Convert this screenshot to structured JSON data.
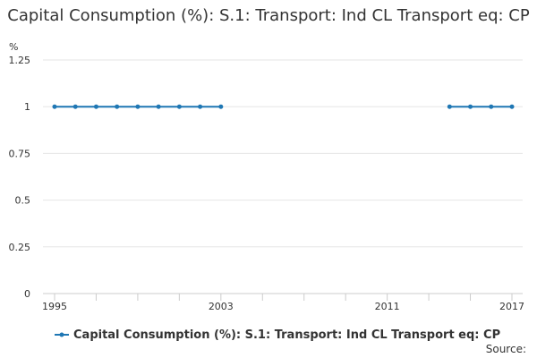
{
  "chart_data": {
    "type": "line",
    "title": "Capital Consumption (%): S.1: Transport: Ind CL Transport eq: CP",
    "ylabel": "%",
    "xlabel": "",
    "ylim": [
      0,
      1.25
    ],
    "xlim": [
      1995,
      2017
    ],
    "y_ticks": [
      0,
      0.25,
      0.5,
      0.75,
      1,
      1.25
    ],
    "y_tick_labels": [
      "0",
      "0.25",
      "0.5",
      "0.75",
      "1",
      "1.25"
    ],
    "x_tick_labels": [
      "1995",
      "2003",
      "2011",
      "2017"
    ],
    "x_tick_label_years": [
      1995,
      2003,
      2011,
      2017
    ],
    "x_minor_ticks": [
      1995,
      1997,
      1999,
      2001,
      2003,
      2005,
      2007,
      2009,
      2011,
      2013,
      2015,
      2017
    ],
    "grid": true,
    "legend_position": "bottom",
    "series": [
      {
        "name": "Capital Consumption (%): S.1: Transport: Ind CL Transport eq: CP",
        "color": "#1f77b4",
        "segments": [
          [
            [
              1995,
              1
            ],
            [
              1996,
              1
            ],
            [
              1997,
              1
            ],
            [
              1998,
              1
            ],
            [
              1999,
              1
            ],
            [
              2000,
              1
            ],
            [
              2001,
              1
            ],
            [
              2002,
              1
            ],
            [
              2003,
              1
            ]
          ],
          [
            [
              2014,
              1
            ],
            [
              2015,
              1
            ],
            [
              2016,
              1
            ],
            [
              2017,
              1
            ]
          ]
        ]
      }
    ]
  },
  "source_label": "Source:"
}
